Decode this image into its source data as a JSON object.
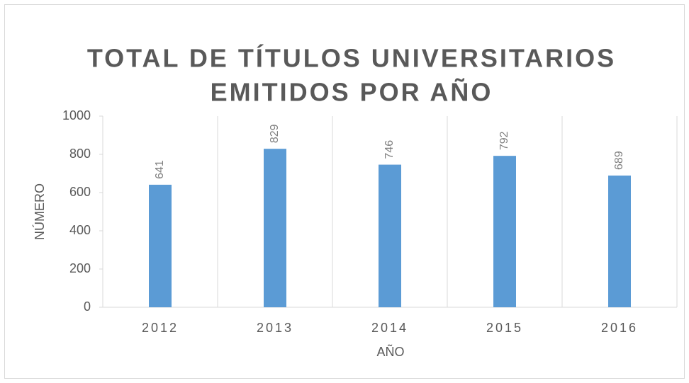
{
  "chart_data": {
    "type": "bar",
    "title": [
      "TOTAL DE TÍTULOS UNIVERSITARIOS",
      "EMITIDOS POR AÑO"
    ],
    "x_label": "AÑO",
    "y_label": "NÚMERO",
    "categories": [
      "2012",
      "2013",
      "2014",
      "2015",
      "2016"
    ],
    "values": [
      641,
      829,
      746,
      792,
      689
    ],
    "color": "#5b9bd5",
    "ylim": [
      0,
      1000
    ],
    "yticks": [
      0,
      200,
      400,
      600,
      800,
      1000
    ],
    "grid": false,
    "data_labels": true
  }
}
